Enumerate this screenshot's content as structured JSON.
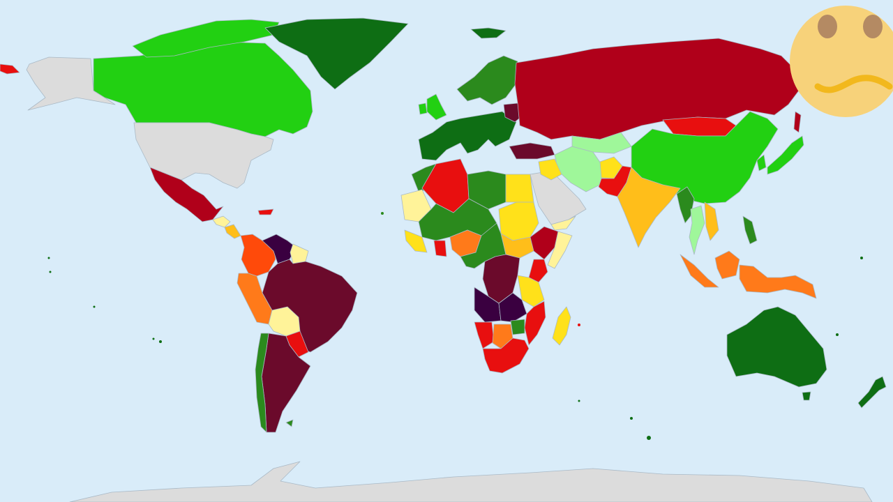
{
  "map": {
    "ocean_color": "#d9ecf9",
    "no_data_color": "#dcdcdc",
    "scale_colors": {
      "dark_green": "#0e6e14",
      "green": "#2b8a1d",
      "bright_green": "#22d012",
      "light_green": "#9ff79a",
      "pale_yellow": "#fff399",
      "yellow": "#ffe11a",
      "amber": "#ffbe1a",
      "orange": "#ff7a1a",
      "red_orange": "#ff4a0a",
      "red": "#e80f0f",
      "dark_red": "#b0001a",
      "maroon": "#6b0a2b",
      "dark_purple": "#3a0040"
    }
  },
  "overlay": {
    "icon": "sad-face-icon",
    "face_color": "#f7d27a",
    "eye_color": "#b48a63",
    "mouth_color": "#f2b81d"
  }
}
